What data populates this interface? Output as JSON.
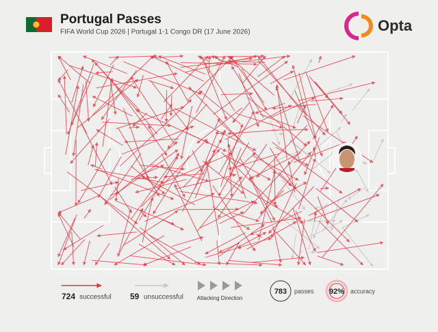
{
  "header": {
    "title": "Portugal Passes",
    "subtitle": "FIFA World Cup 2026 | Portugal 1-1 Congo DR (17 June 2026)",
    "brand": "Opta"
  },
  "legend": {
    "successful": {
      "value": 724,
      "label": "successful"
    },
    "unsuccessful": {
      "value": 59,
      "label": "unsuccessful"
    },
    "direction": "Attacking Direction",
    "passes": {
      "value": 783,
      "label": "passes"
    },
    "accuracy": {
      "value": "92%",
      "label": "accuracy"
    }
  }
}
